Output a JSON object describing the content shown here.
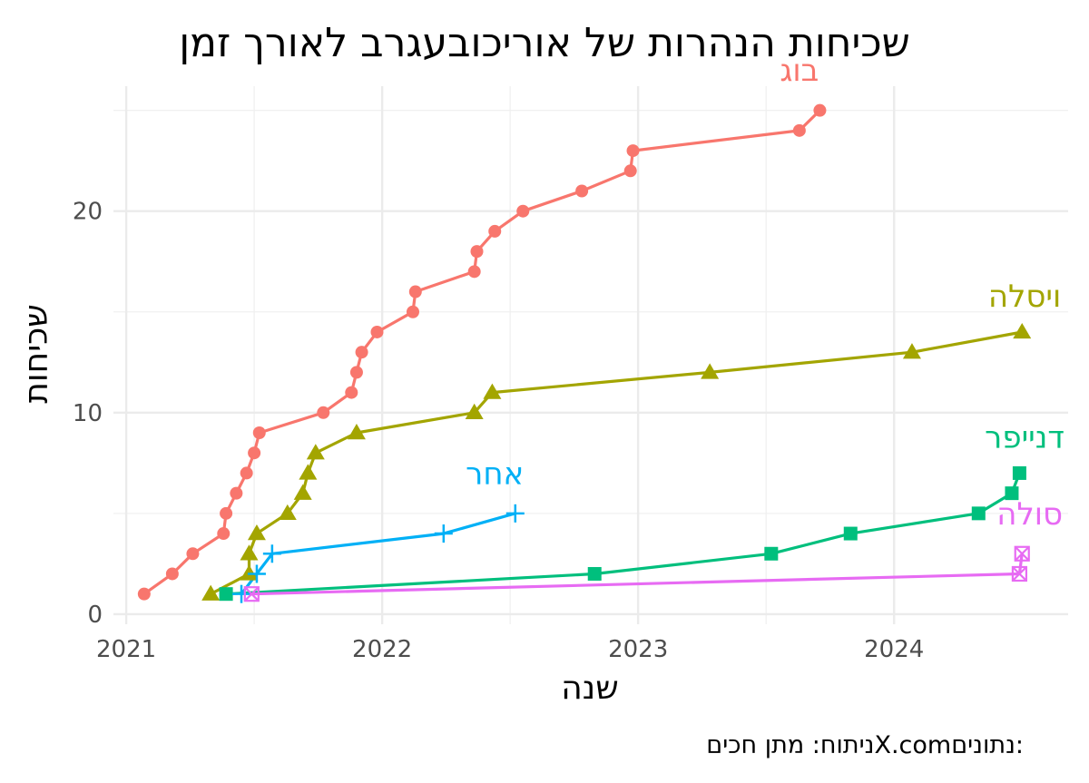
{
  "chart_data": {
    "type": "line",
    "title": "שכיחות הנהרות של אוריכובעגרב לאורך זמן",
    "xlabel": "שנה",
    "ylabel": "שכיחות",
    "caption": "ניתוח: מתן חכיםX.comנתונים:",
    "xlim": [
      2020.95,
      2024.68
    ],
    "ylim": [
      -0.5,
      26.2
    ],
    "x_ticks": [
      2021,
      2022,
      2023,
      2024
    ],
    "x_tick_labels": [
      "2021",
      "2022",
      "2023",
      "2024"
    ],
    "y_ticks": [
      0,
      10,
      20
    ],
    "y_tick_labels": [
      "0",
      "10",
      "20"
    ],
    "grid": true,
    "legend": "direct labels at line ends",
    "series": [
      {
        "name": "בוג",
        "color": "#f8766d",
        "marker": "circle",
        "points": [
          [
            2021.07,
            1
          ],
          [
            2021.18,
            2
          ],
          [
            2021.26,
            3
          ],
          [
            2021.38,
            4
          ],
          [
            2021.39,
            5
          ],
          [
            2021.43,
            6
          ],
          [
            2021.47,
            7
          ],
          [
            2021.5,
            8
          ],
          [
            2021.52,
            9
          ],
          [
            2021.77,
            10
          ],
          [
            2021.88,
            11
          ],
          [
            2021.9,
            12
          ],
          [
            2021.92,
            13
          ],
          [
            2021.98,
            14
          ],
          [
            2022.12,
            15
          ],
          [
            2022.13,
            16
          ],
          [
            2022.36,
            17
          ],
          [
            2022.37,
            18
          ],
          [
            2022.44,
            19
          ],
          [
            2022.55,
            20
          ],
          [
            2022.78,
            21
          ],
          [
            2022.97,
            22
          ],
          [
            2022.98,
            23
          ],
          [
            2023.63,
            24
          ],
          [
            2023.71,
            25
          ]
        ],
        "label_at": [
          2023.63,
          27.0
        ]
      },
      {
        "name": "ויסלה",
        "color": "#a3a500",
        "marker": "triangle",
        "points": [
          [
            2021.33,
            1
          ],
          [
            2021.48,
            2
          ],
          [
            2021.48,
            3
          ],
          [
            2021.51,
            4
          ],
          [
            2021.63,
            5
          ],
          [
            2021.69,
            6
          ],
          [
            2021.71,
            7
          ],
          [
            2021.74,
            8
          ],
          [
            2021.9,
            9
          ],
          [
            2022.36,
            10
          ],
          [
            2022.43,
            11
          ],
          [
            2023.28,
            12
          ],
          [
            2024.07,
            13
          ],
          [
            2024.5,
            14
          ]
        ],
        "label_at": [
          2024.51,
          15.8
        ]
      },
      {
        "name": "דנייפר",
        "color": "#00bf7d",
        "marker": "square",
        "points": [
          [
            2021.39,
            1
          ],
          [
            2022.83,
            2
          ],
          [
            2023.52,
            3
          ],
          [
            2023.83,
            4
          ],
          [
            2024.33,
            5
          ],
          [
            2024.46,
            6
          ],
          [
            2024.49,
            7
          ]
        ],
        "label_at": [
          2024.51,
          8.8
        ]
      },
      {
        "name": "אחר",
        "color": "#00b0f6",
        "marker": "plus",
        "points": [
          [
            2021.45,
            1
          ],
          [
            2021.51,
            2
          ],
          [
            2021.57,
            3
          ],
          [
            2022.24,
            4
          ],
          [
            2022.52,
            5
          ]
        ],
        "label_at": [
          2022.44,
          7.0
        ]
      },
      {
        "name": "סולה",
        "color": "#e76bf3",
        "marker": "square-x",
        "points": [
          [
            2021.49,
            1
          ],
          [
            2024.49,
            2
          ],
          [
            2024.5,
            3
          ]
        ],
        "label_at": [
          2024.53,
          5.0
        ]
      }
    ]
  }
}
